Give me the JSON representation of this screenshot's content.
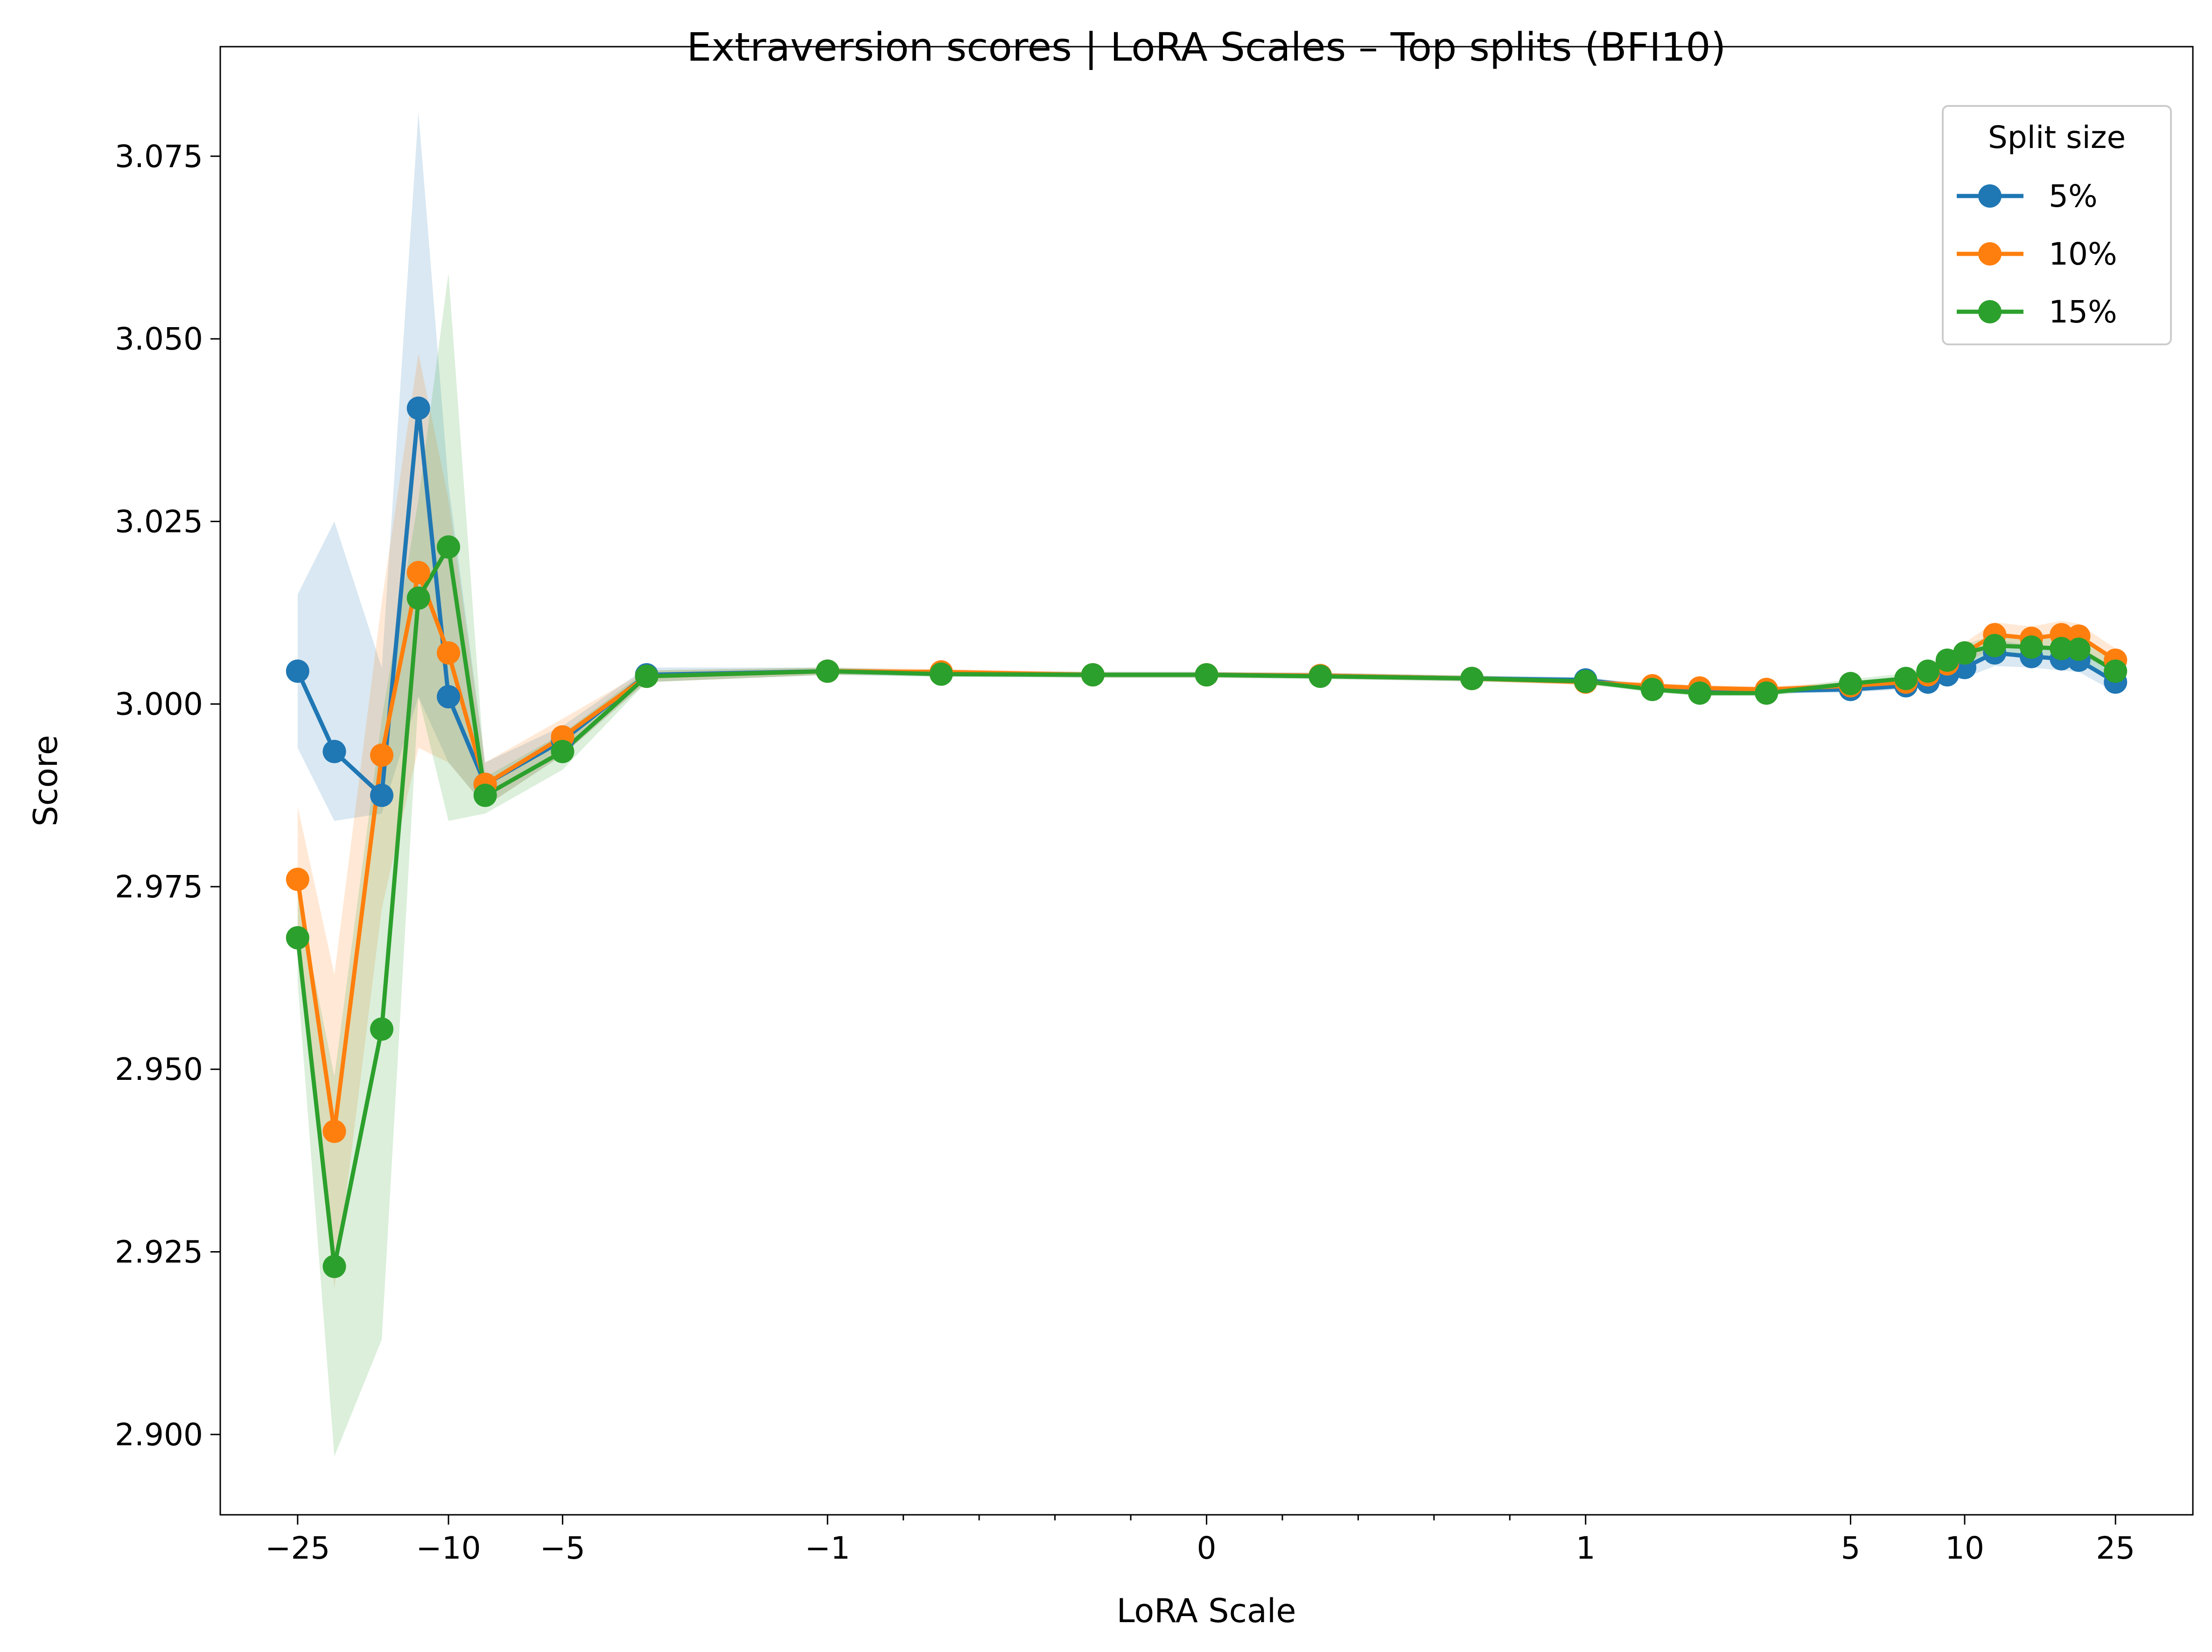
{
  "chart_data": {
    "type": "line",
    "title": "Extraversion scores | LoRA Scales – Top splits (BFI10)",
    "xlabel": "LoRA Scale",
    "ylabel": "Score",
    "x_scale": "symlog",
    "xlim": [
      -40,
      40
    ],
    "ylim": [
      2.889,
      3.09
    ],
    "x_ticks": [
      {
        "value": -25,
        "label": "−25"
      },
      {
        "value": -10,
        "label": "−10"
      },
      {
        "value": -5,
        "label": "−5"
      },
      {
        "value": -1,
        "label": "−1"
      },
      {
        "value": 0,
        "label": "0"
      },
      {
        "value": 1,
        "label": "1"
      },
      {
        "value": 5,
        "label": "5"
      },
      {
        "value": 10,
        "label": "10"
      },
      {
        "value": 25,
        "label": "25"
      }
    ],
    "y_ticks": [
      {
        "value": 2.9,
        "label": "2.900"
      },
      {
        "value": 2.925,
        "label": "2.925"
      },
      {
        "value": 2.95,
        "label": "2.950"
      },
      {
        "value": 2.975,
        "label": "2.975"
      },
      {
        "value": 3.0,
        "label": "3.000"
      },
      {
        "value": 3.025,
        "label": "3.025"
      },
      {
        "value": 3.05,
        "label": "3.050"
      },
      {
        "value": 3.075,
        "label": "3.075"
      }
    ],
    "x": [
      -25,
      -20,
      -15,
      -12,
      -10,
      -8,
      -5,
      -3,
      -1,
      -0.7,
      -0.3,
      0,
      0.3,
      0.7,
      1,
      1.5,
      2,
      3,
      5,
      7,
      8,
      9,
      10,
      12,
      15,
      18,
      20,
      25
    ],
    "legend": {
      "title": "Split size",
      "position": "top-right"
    },
    "grid": false,
    "series": [
      {
        "name": "5%",
        "color": "#1f77b4",
        "values": [
          3.0045,
          2.9935,
          2.9875,
          3.0405,
          3.001,
          2.989,
          2.995,
          3.004,
          3.0045,
          3.0042,
          3.004,
          3.004,
          3.0039,
          3.0035,
          3.0033,
          3.0022,
          3.002,
          3.0018,
          3.002,
          3.0025,
          3.003,
          3.004,
          3.005,
          3.007,
          3.0065,
          3.0062,
          3.006,
          3.003
        ],
        "band_low": [
          2.994,
          2.984,
          2.985,
          3.001,
          2.992,
          2.986,
          2.993,
          3.003,
          3.004,
          3.0038,
          3.0036,
          3.0036,
          3.0035,
          3.0031,
          3.0029,
          3.0018,
          3.0016,
          3.0014,
          3.0016,
          3.002,
          3.0024,
          3.003,
          3.0036,
          3.0052,
          3.005,
          3.0046,
          3.0044,
          3.0016
        ],
        "band_high": [
          3.015,
          3.025,
          3.005,
          3.081,
          3.03,
          2.992,
          2.997,
          3.005,
          3.005,
          3.0046,
          3.0044,
          3.0044,
          3.0043,
          3.0039,
          3.0037,
          3.0026,
          3.0024,
          3.0022,
          3.0024,
          3.003,
          3.0036,
          3.005,
          3.0064,
          3.0088,
          3.008,
          3.0078,
          3.0076,
          3.0044
        ]
      },
      {
        "name": "10%",
        "color": "#ff7f0e",
        "values": [
          2.976,
          2.9415,
          2.993,
          3.018,
          3.007,
          2.989,
          2.9955,
          3.0038,
          3.0045,
          3.0044,
          3.004,
          3.004,
          3.0039,
          3.0035,
          3.003,
          3.0025,
          3.0022,
          3.002,
          3.0025,
          3.003,
          3.004,
          3.0055,
          3.007,
          3.0095,
          3.009,
          3.0095,
          3.0093,
          3.006
        ],
        "band_low": [
          2.966,
          2.92,
          2.972,
          2.994,
          2.992,
          2.986,
          2.993,
          3.003,
          3.004,
          3.004,
          3.0036,
          3.0036,
          3.0035,
          3.0031,
          3.0026,
          3.0021,
          3.0018,
          3.0016,
          3.002,
          3.0024,
          3.0032,
          3.0044,
          3.0056,
          3.0078,
          3.0074,
          3.0078,
          3.0076,
          3.0044
        ],
        "band_high": [
          2.986,
          2.963,
          3.014,
          3.048,
          3.028,
          2.992,
          2.998,
          3.0046,
          3.005,
          3.0048,
          3.0044,
          3.0044,
          3.0043,
          3.0039,
          3.0034,
          3.0029,
          3.0026,
          3.0024,
          3.003,
          3.0036,
          3.0048,
          3.0066,
          3.0084,
          3.0112,
          3.0106,
          3.0114,
          3.011,
          3.0076
        ]
      },
      {
        "name": "15%",
        "color": "#2ca02c",
        "values": [
          2.968,
          2.923,
          2.9555,
          3.0145,
          3.0215,
          2.9875,
          2.9935,
          3.0038,
          3.0045,
          3.0041,
          3.004,
          3.004,
          3.0038,
          3.0035,
          3.0031,
          3.002,
          3.0015,
          3.0015,
          3.0028,
          3.0035,
          3.0045,
          3.006,
          3.007,
          3.008,
          3.0078,
          3.0076,
          3.0075,
          3.0045
        ],
        "band_low": [
          2.962,
          2.897,
          2.913,
          3.001,
          2.984,
          2.985,
          2.991,
          3.003,
          3.004,
          3.0037,
          3.0036,
          3.0036,
          3.0034,
          3.0031,
          3.0027,
          3.0016,
          3.0011,
          3.0011,
          3.0022,
          3.0028,
          3.0037,
          3.005,
          3.0058,
          3.0066,
          3.0064,
          3.0062,
          3.006,
          3.003
        ],
        "band_high": [
          2.974,
          2.949,
          2.998,
          3.028,
          3.059,
          2.99,
          2.996,
          3.0046,
          3.005,
          3.0045,
          3.0044,
          3.0044,
          3.0042,
          3.0039,
          3.0035,
          3.0024,
          3.0019,
          3.0019,
          3.0034,
          3.0042,
          3.0053,
          3.007,
          3.0082,
          3.0094,
          3.0092,
          3.009,
          3.009,
          3.006
        ]
      }
    ]
  }
}
